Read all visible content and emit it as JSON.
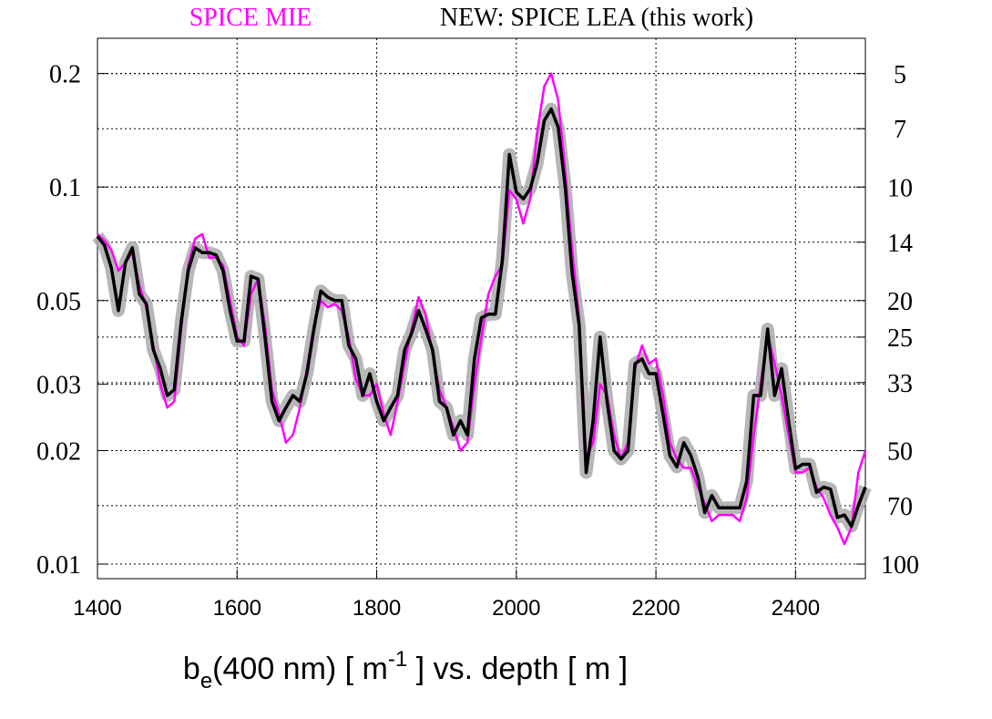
{
  "chart_data": {
    "type": "line",
    "xlabel": {
      "base": "b",
      "sub": "e",
      "mid": "(400 nm) [ m",
      "sup": "-1",
      "end": " ] vs. depth [ m ]"
    },
    "x": [
      1400,
      1410,
      1420,
      1430,
      1440,
      1450,
      1460,
      1470,
      1480,
      1490,
      1500,
      1510,
      1520,
      1530,
      1540,
      1550,
      1560,
      1570,
      1580,
      1590,
      1600,
      1610,
      1620,
      1630,
      1640,
      1650,
      1660,
      1670,
      1680,
      1690,
      1700,
      1710,
      1720,
      1730,
      1740,
      1750,
      1760,
      1770,
      1780,
      1790,
      1800,
      1810,
      1820,
      1830,
      1840,
      1850,
      1860,
      1870,
      1880,
      1890,
      1900,
      1910,
      1920,
      1930,
      1940,
      1950,
      1960,
      1970,
      1980,
      1990,
      2000,
      2010,
      2020,
      2030,
      2040,
      2050,
      2060,
      2070,
      2080,
      2090,
      2100,
      2110,
      2120,
      2130,
      2140,
      2150,
      2160,
      2170,
      2180,
      2190,
      2200,
      2210,
      2220,
      2230,
      2240,
      2250,
      2260,
      2270,
      2280,
      2290,
      2300,
      2310,
      2320,
      2330,
      2340,
      2350,
      2360,
      2370,
      2380,
      2390,
      2400,
      2410,
      2420,
      2430,
      2440,
      2450,
      2460,
      2470,
      2480,
      2490,
      2500
    ],
    "series": [
      {
        "name": "SPICE MIE",
        "color": "#ff00ff",
        "values": [
          0.075,
          0.072,
          0.068,
          0.06,
          0.063,
          0.067,
          0.055,
          0.048,
          0.038,
          0.03,
          0.026,
          0.027,
          0.042,
          0.062,
          0.073,
          0.075,
          0.065,
          0.065,
          0.062,
          0.05,
          0.04,
          0.038,
          0.052,
          0.057,
          0.043,
          0.029,
          0.025,
          0.021,
          0.022,
          0.026,
          0.033,
          0.043,
          0.05,
          0.048,
          0.049,
          0.047,
          0.04,
          0.031,
          0.028,
          0.028,
          0.03,
          0.025,
          0.022,
          0.027,
          0.034,
          0.042,
          0.051,
          0.046,
          0.036,
          0.029,
          0.026,
          0.023,
          0.02,
          0.021,
          0.03,
          0.04,
          0.052,
          0.058,
          0.062,
          0.098,
          0.093,
          0.08,
          0.093,
          0.14,
          0.185,
          0.2,
          0.17,
          0.11,
          0.068,
          0.045,
          0.019,
          0.021,
          0.03,
          0.028,
          0.022,
          0.019,
          0.021,
          0.033,
          0.038,
          0.034,
          0.035,
          0.028,
          0.021,
          0.019,
          0.018,
          0.018,
          0.016,
          0.0145,
          0.013,
          0.0135,
          0.0135,
          0.0135,
          0.013,
          0.015,
          0.022,
          0.03,
          0.041,
          0.034,
          0.028,
          0.022,
          0.0175,
          0.0175,
          0.018,
          0.016,
          0.015,
          0.0135,
          0.0125,
          0.0113,
          0.0125,
          0.0175,
          0.02
        ]
      },
      {
        "name": "NEW: SPICE LEA (this work)",
        "color": "#000000",
        "values": [
          0.074,
          0.07,
          0.061,
          0.047,
          0.063,
          0.069,
          0.052,
          0.049,
          0.037,
          0.033,
          0.028,
          0.029,
          0.044,
          0.06,
          0.069,
          0.067,
          0.067,
          0.066,
          0.06,
          0.047,
          0.039,
          0.039,
          0.058,
          0.057,
          0.04,
          0.027,
          0.024,
          0.026,
          0.028,
          0.027,
          0.032,
          0.042,
          0.053,
          0.051,
          0.05,
          0.05,
          0.038,
          0.035,
          0.028,
          0.032,
          0.027,
          0.024,
          0.026,
          0.028,
          0.037,
          0.041,
          0.047,
          0.042,
          0.037,
          0.027,
          0.026,
          0.022,
          0.024,
          0.022,
          0.035,
          0.045,
          0.046,
          0.046,
          0.064,
          0.122,
          0.097,
          0.093,
          0.099,
          0.116,
          0.15,
          0.161,
          0.144,
          0.1,
          0.059,
          0.043,
          0.0175,
          0.024,
          0.04,
          0.027,
          0.02,
          0.019,
          0.02,
          0.034,
          0.035,
          0.032,
          0.032,
          0.025,
          0.0194,
          0.0181,
          0.021,
          0.0194,
          0.017,
          0.0137,
          0.0152,
          0.0141,
          0.0141,
          0.0141,
          0.0141,
          0.0166,
          0.028,
          0.028,
          0.042,
          0.028,
          0.033,
          0.024,
          0.0179,
          0.0184,
          0.0184,
          0.0155,
          0.016,
          0.0158,
          0.0133,
          0.0135,
          0.0126,
          0.0143,
          0.016
        ]
      }
    ],
    "xlim": [
      1400,
      2500
    ],
    "xticks": [
      1400,
      1600,
      1800,
      2000,
      2200,
      2400
    ],
    "ylim": [
      0.00915,
      0.248
    ],
    "yticks": [
      0.01,
      0.02,
      0.03,
      0.05,
      0.1,
      0.2
    ],
    "ylog": true,
    "y2lim": [
      109.3,
      4.03
    ],
    "y2ticks": [
      5,
      7,
      10,
      14,
      20,
      25,
      33,
      50,
      70,
      100
    ],
    "y2log": true,
    "grid": true,
    "legend": "top"
  }
}
